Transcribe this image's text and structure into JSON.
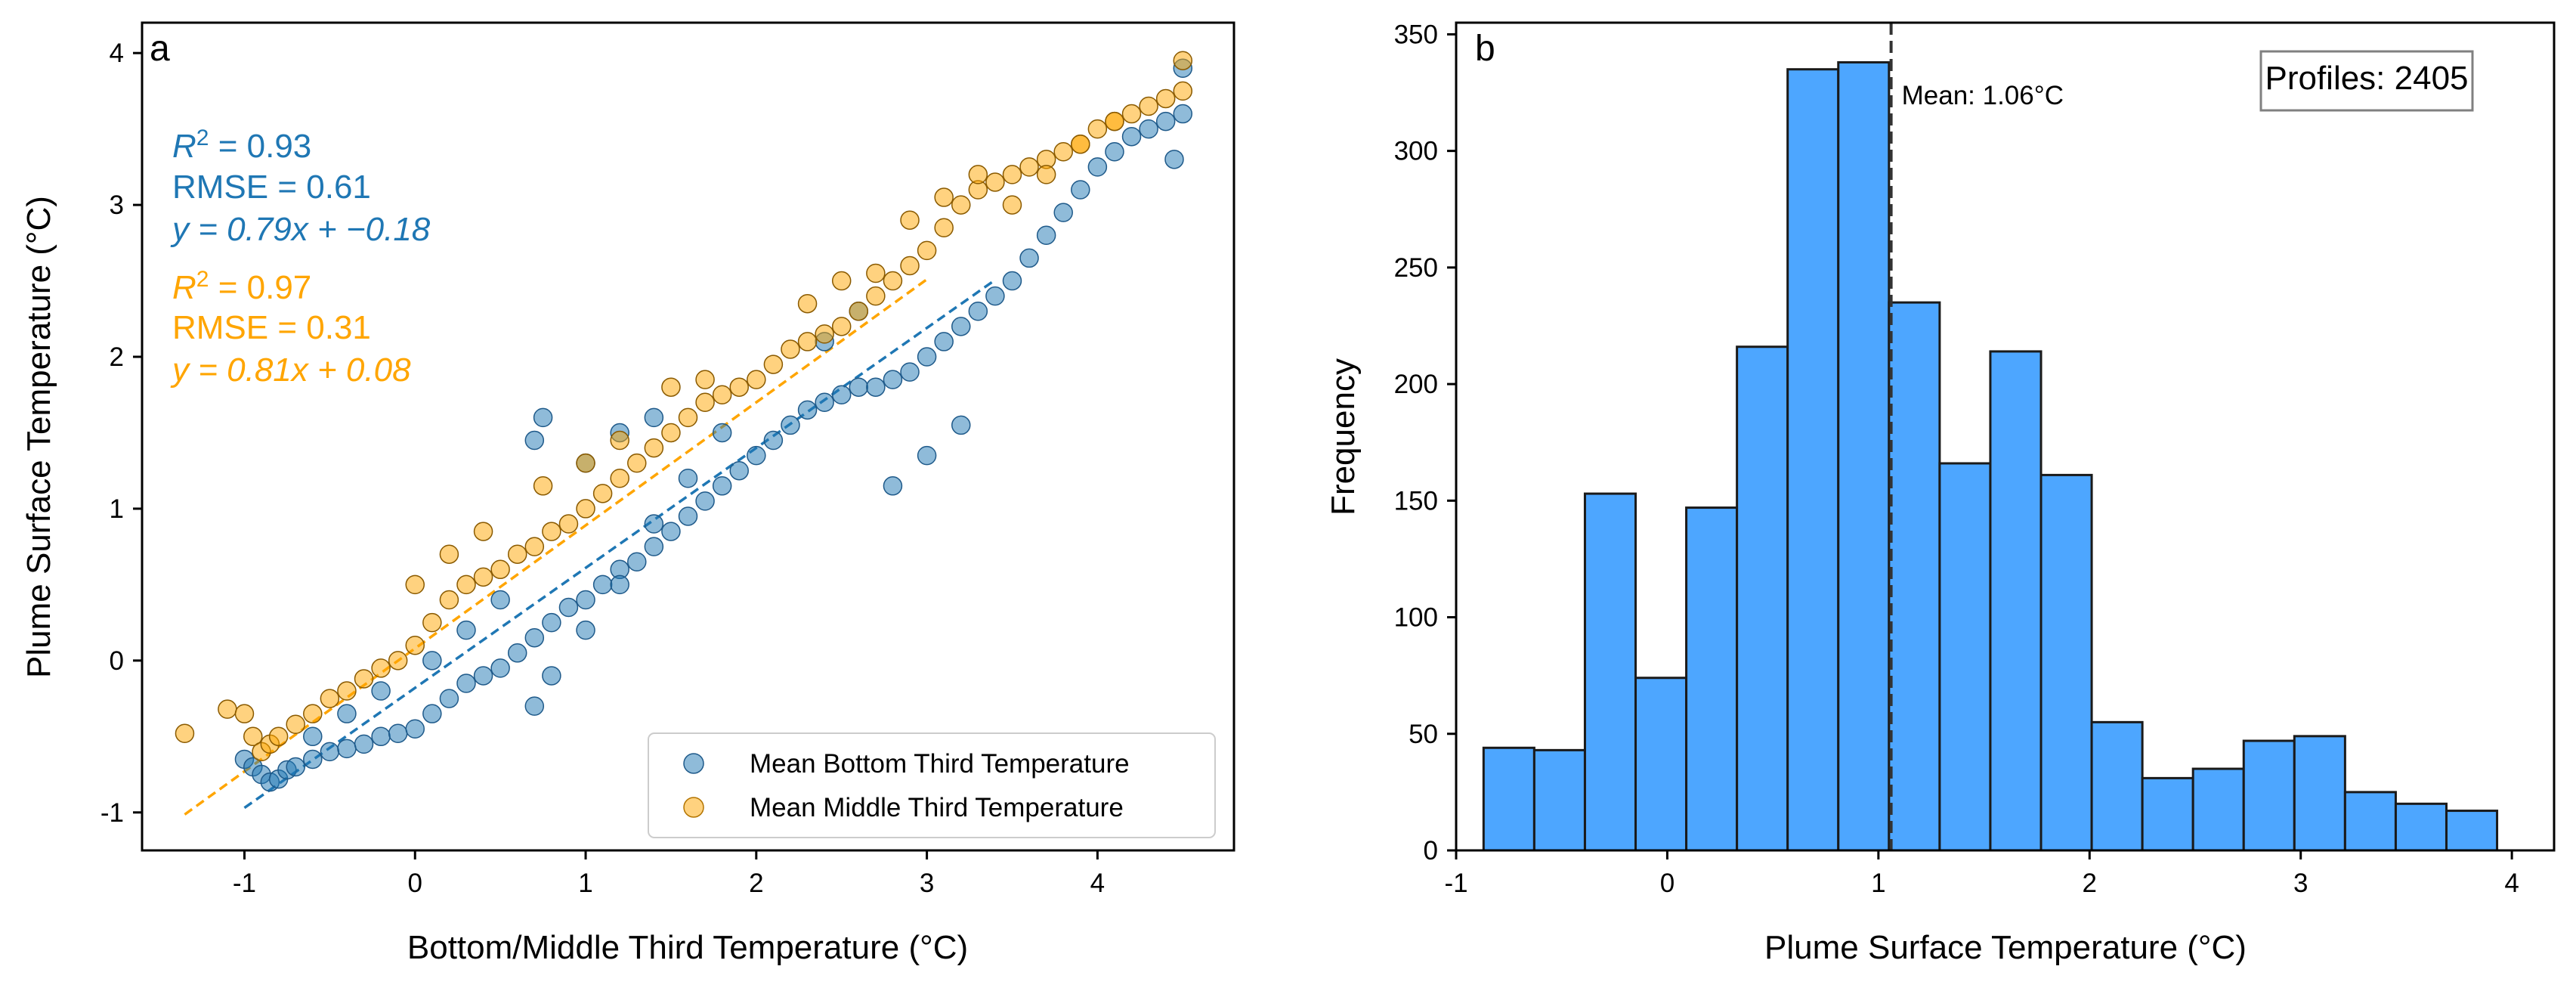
{
  "chart_data": [
    {
      "type": "scatter",
      "panel_label": "a",
      "xlabel": "Bottom/Middle Third Temperature (°C)",
      "ylabel": "Plume Surface Temperature (°C)",
      "xlim": [
        -1.6,
        4.8
      ],
      "ylim": [
        -1.25,
        4.2
      ],
      "xticks": [
        -1,
        0,
        1,
        2,
        3,
        4
      ],
      "yticks": [
        -1,
        0,
        1,
        2,
        3,
        4
      ],
      "grid": false,
      "legend_position": "lower-right",
      "series": [
        {
          "name": "Mean Bottom Third Temperature",
          "color": "#1f77b4",
          "x": [
            -1.0,
            -0.95,
            -0.9,
            -0.85,
            -0.8,
            -0.75,
            -0.7,
            -0.6,
            -0.5,
            -0.4,
            -0.3,
            -0.2,
            -0.1,
            0.0,
            0.1,
            0.2,
            0.3,
            0.4,
            0.5,
            0.6,
            0.7,
            0.8,
            0.9,
            1.0,
            1.1,
            1.2,
            1.3,
            1.4,
            1.5,
            1.6,
            1.7,
            1.8,
            1.9,
            2.0,
            2.1,
            2.2,
            2.3,
            2.4,
            2.5,
            2.6,
            2.7,
            2.8,
            2.9,
            3.0,
            3.1,
            3.2,
            3.3,
            3.4,
            3.5,
            3.6,
            3.7,
            3.8,
            3.9,
            4.0,
            4.1,
            4.2,
            4.3,
            4.4,
            4.5,
            4.5,
            4.45,
            0.7,
            0.8,
            1.0,
            1.2,
            1.4,
            1.6,
            1.8,
            1.0,
            1.2,
            1.4,
            2.8,
            3.0,
            3.2,
            2.4,
            2.6,
            0.7,
            0.75,
            -0.6,
            -0.4,
            -0.2,
            0.1,
            0.3,
            0.5
          ],
          "y": [
            -0.65,
            -0.7,
            -0.75,
            -0.8,
            -0.78,
            -0.72,
            -0.7,
            -0.65,
            -0.6,
            -0.58,
            -0.55,
            -0.5,
            -0.48,
            -0.45,
            -0.35,
            -0.25,
            -0.15,
            -0.1,
            -0.05,
            0.05,
            0.15,
            0.25,
            0.35,
            0.4,
            0.5,
            0.6,
            0.65,
            0.75,
            0.85,
            0.95,
            1.05,
            1.15,
            1.25,
            1.35,
            1.45,
            1.55,
            1.65,
            1.7,
            1.75,
            1.8,
            1.8,
            1.85,
            1.9,
            2.0,
            2.1,
            2.2,
            2.3,
            2.4,
            2.5,
            2.65,
            2.8,
            2.95,
            3.1,
            3.25,
            3.35,
            3.45,
            3.5,
            3.55,
            3.6,
            3.9,
            3.3,
            -0.3,
            -0.1,
            0.2,
            0.5,
            0.9,
            1.2,
            1.5,
            1.3,
            1.5,
            1.6,
            1.15,
            1.35,
            1.55,
            2.1,
            2.3,
            1.45,
            1.6,
            -0.5,
            -0.35,
            -0.2,
            0.0,
            0.2,
            0.4
          ]
        },
        {
          "name": "Mean Middle Third Temperature",
          "color": "#ffa500",
          "x": [
            -1.35,
            -1.1,
            -1.0,
            -0.95,
            -0.9,
            -0.85,
            -0.8,
            -0.7,
            -0.6,
            -0.5,
            -0.4,
            -0.3,
            -0.2,
            -0.1,
            0.0,
            0.1,
            0.2,
            0.3,
            0.4,
            0.5,
            0.6,
            0.7,
            0.8,
            0.9,
            1.0,
            1.1,
            1.2,
            1.3,
            1.4,
            1.5,
            1.6,
            1.7,
            1.8,
            1.9,
            2.0,
            2.1,
            2.2,
            2.3,
            2.4,
            2.5,
            2.6,
            2.7,
            2.8,
            2.9,
            3.0,
            3.1,
            3.2,
            3.3,
            3.4,
            3.5,
            3.6,
            3.7,
            3.8,
            3.9,
            4.0,
            4.1,
            4.2,
            4.3,
            4.4,
            4.5,
            4.5,
            0.75,
            1.0,
            1.2,
            1.5,
            1.7,
            2.3,
            2.5,
            2.7,
            2.9,
            3.1,
            3.3,
            3.5,
            3.7,
            3.9,
            4.1,
            0.0,
            0.2,
            0.4
          ],
          "y": [
            -0.48,
            -0.32,
            -0.35,
            -0.5,
            -0.6,
            -0.55,
            -0.5,
            -0.42,
            -0.35,
            -0.25,
            -0.2,
            -0.12,
            -0.05,
            0.0,
            0.1,
            0.25,
            0.4,
            0.5,
            0.55,
            0.6,
            0.7,
            0.75,
            0.85,
            0.9,
            1.0,
            1.1,
            1.2,
            1.3,
            1.4,
            1.5,
            1.6,
            1.7,
            1.75,
            1.8,
            1.85,
            1.95,
            2.05,
            2.1,
            2.15,
            2.2,
            2.3,
            2.4,
            2.5,
            2.6,
            2.7,
            2.85,
            3.0,
            3.1,
            3.15,
            3.2,
            3.25,
            3.3,
            3.35,
            3.4,
            3.5,
            3.55,
            3.6,
            3.65,
            3.7,
            3.75,
            3.95,
            1.15,
            1.3,
            1.45,
            1.8,
            1.85,
            2.35,
            2.5,
            2.55,
            2.9,
            3.05,
            3.2,
            3.0,
            3.2,
            3.4,
            3.55,
            0.5,
            0.7,
            0.85
          ]
        }
      ],
      "annotations": {
        "bottom": {
          "r2_prefix": "R",
          "r2_value": "= 0.93",
          "rmse": "RMSE = 0.61",
          "equation": "y = 0.79x + −0.18",
          "color": "#1f77b4"
        },
        "middle": {
          "r2_prefix": "R",
          "r2_value": "= 0.97",
          "rmse": "RMSE = 0.31",
          "equation": "y = 0.81x + 0.08",
          "color": "#ffa500"
        },
        "r2_superscript": "2"
      },
      "fit_lines": [
        {
          "series": "Mean Bottom Third Temperature",
          "slope": 0.79,
          "intercept": -0.18,
          "x_range": [
            -1.0,
            3.4
          ],
          "color": "#1f77b4",
          "style": "dashed"
        },
        {
          "series": "Mean Middle Third Temperature",
          "slope": 0.81,
          "intercept": 0.08,
          "x_range": [
            -1.35,
            3.0
          ],
          "color": "#ffa500",
          "style": "dashed"
        }
      ]
    },
    {
      "type": "bar",
      "panel_label": "b",
      "xlabel": "Plume Surface Temperature (°C)",
      "ylabel": "Frequency",
      "xlim": [
        -1.0,
        4.2
      ],
      "ylim": [
        0,
        355
      ],
      "xticks": [
        -1,
        0,
        1,
        2,
        3,
        4
      ],
      "yticks": [
        0,
        50,
        100,
        150,
        200,
        250,
        300,
        350
      ],
      "grid": false,
      "bar_color": "#4da6ff",
      "bin_edges": [
        -0.87,
        -0.63,
        -0.39,
        -0.15,
        0.09,
        0.33,
        0.57,
        0.81,
        1.05,
        1.29,
        1.53,
        1.77,
        2.01,
        2.25,
        2.49,
        2.73,
        2.97,
        3.21,
        3.45,
        3.69,
        3.93
      ],
      "values": [
        44,
        43,
        153,
        74,
        147,
        216,
        335,
        338,
        235,
        166,
        214,
        161,
        55,
        31,
        35,
        47,
        49,
        25,
        20,
        17
      ],
      "mean_line": {
        "x": 1.06,
        "label": "Mean: 1.06°C"
      },
      "info_box": "Profiles: 2405"
    }
  ]
}
